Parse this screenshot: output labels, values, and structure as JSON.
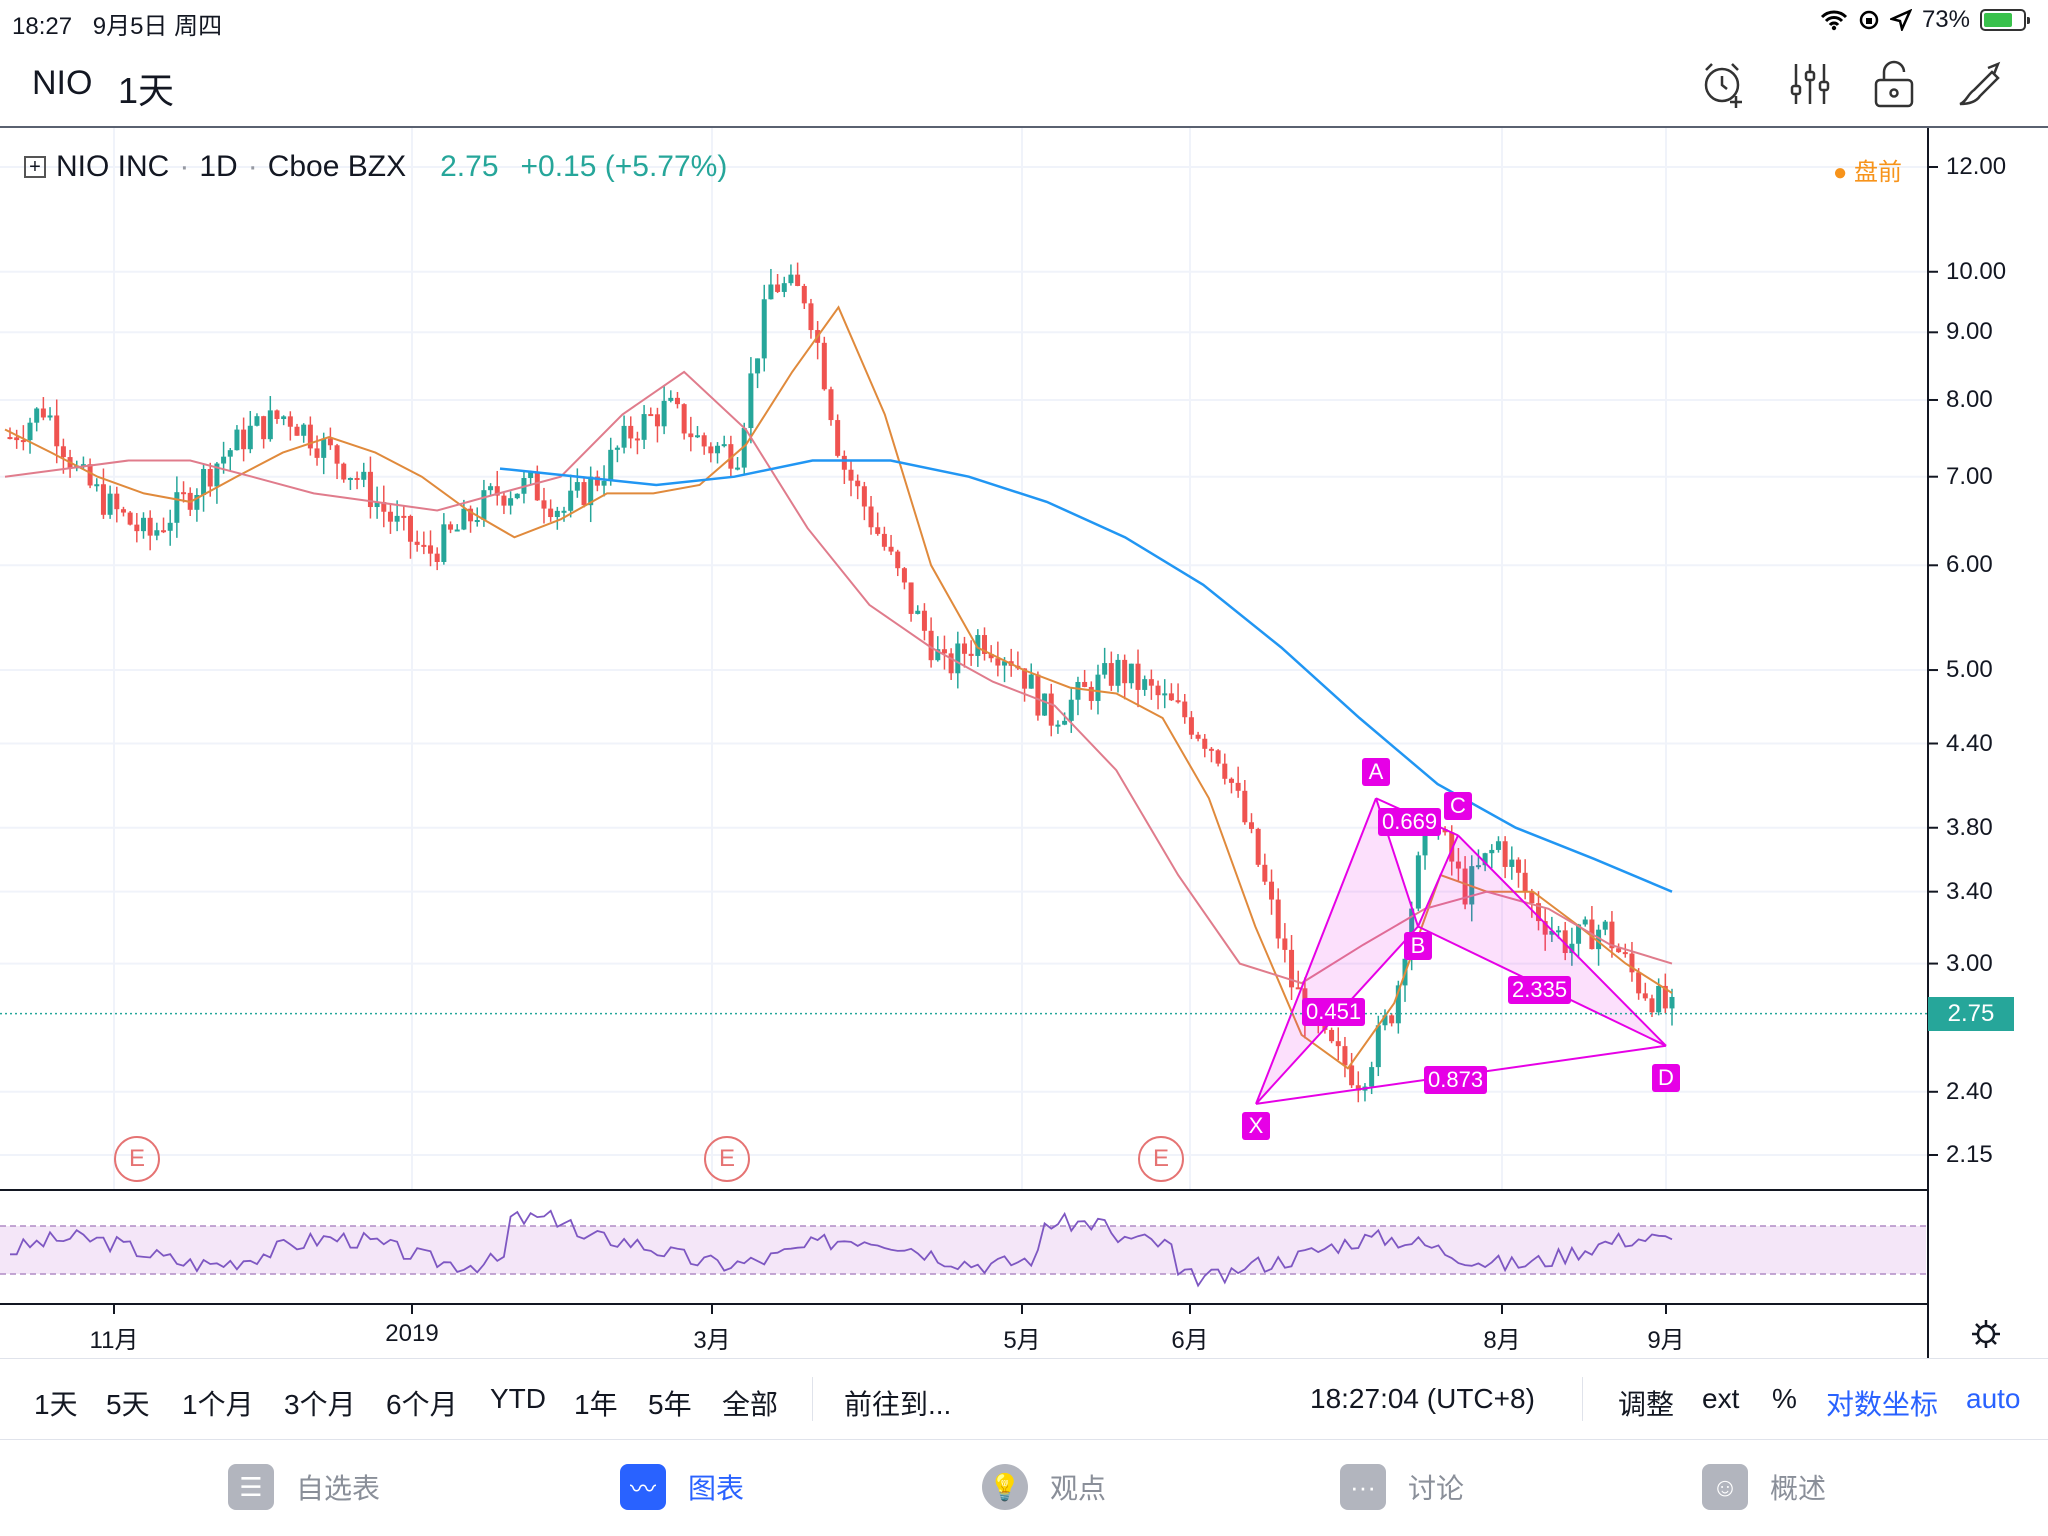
{
  "status": {
    "time": "18:27",
    "date": "9月5日 周四",
    "battery": "73%",
    "battery_level": 0.73
  },
  "header": {
    "symbol": "NIO",
    "interval": "1天"
  },
  "toolbar_icons": [
    "alarm-add-icon",
    "indicators-icon",
    "unlock-icon",
    "drawing-pen-icon"
  ],
  "legend": {
    "name": "NIO INC",
    "interval": "1D",
    "exchange": "Cboe BZX",
    "price": "2.75",
    "change": "+0.15 (+5.77%)",
    "sep": "·"
  },
  "premarket": "盘前",
  "price_tag": "2.75",
  "earnings_marker": "E",
  "pattern": {
    "points": [
      "X",
      "A",
      "B",
      "C",
      "D"
    ],
    "ratios": [
      "0.451",
      "0.669",
      "2.335",
      "0.873"
    ],
    "color": "#e600e6"
  },
  "range_buttons": [
    "1天",
    "5天",
    "1个月",
    "3个月",
    "6个月",
    "YTD",
    "1年",
    "5年",
    "全部"
  ],
  "goto_label": "前往到...",
  "clock": "18:27:04 (UTC+8)",
  "right_controls": {
    "adjust": "调整",
    "ext": "ext",
    "percent": "%",
    "log": "对数坐标",
    "auto": "auto"
  },
  "tabs": [
    {
      "label": "自选表",
      "icon": "watchlist-icon",
      "active": false
    },
    {
      "label": "图表",
      "icon": "chart-icon",
      "active": true
    },
    {
      "label": "观点",
      "icon": "ideas-icon",
      "active": false
    },
    {
      "label": "讨论",
      "icon": "chat-icon",
      "active": false
    },
    {
      "label": "概述",
      "icon": "overview-icon",
      "active": false
    }
  ],
  "chart_data": {
    "type": "candlestick",
    "title": "NIO INC · 1D · Cboe BZX",
    "y_scale": "log",
    "y_ticks": [
      12.0,
      10.0,
      9.0,
      8.0,
      7.0,
      6.0,
      5.0,
      4.4,
      3.8,
      3.4,
      3.0,
      2.75,
      2.4,
      2.15
    ],
    "y_tick_labels": [
      "12.00",
      "10.00",
      "9.00",
      "8.00",
      "7.00",
      "6.00",
      "5.00",
      "4.40",
      "3.80",
      "3.40",
      "3.00",
      "2.75",
      "2.40",
      "2.15"
    ],
    "ylim": [
      2.0,
      12.5
    ],
    "x_labels": [
      "11月",
      "2019",
      "3月",
      "5月",
      "6月",
      "8月",
      "9月"
    ],
    "close_approx": [
      7.5,
      7.9,
      7.0,
      6.6,
      6.3,
      6.7,
      7.2,
      7.6,
      7.8,
      7.4,
      7.0,
      6.5,
      6.1,
      6.4,
      6.8,
      6.9,
      6.6,
      7.0,
      7.6,
      7.9,
      7.4,
      7.3,
      9.8,
      9.6,
      7.2,
      6.4,
      5.6,
      5.0,
      5.3,
      5.1,
      4.6,
      4.8,
      5.0,
      4.8,
      4.6,
      4.3,
      3.6,
      2.9,
      2.6,
      2.45,
      2.8,
      3.9,
      3.4,
      3.7,
      3.3,
      3.1,
      3.2,
      2.9,
      2.75
    ],
    "moving_averages": [
      {
        "color": "#e08a3c",
        "values": [
          7.6,
          7.3,
          7.0,
          6.8,
          6.7,
          7.0,
          7.3,
          7.5,
          7.3,
          7.0,
          6.6,
          6.3,
          6.5,
          6.8,
          6.8,
          6.9,
          7.4,
          8.4,
          9.4,
          7.8,
          6.0,
          5.2,
          5.0,
          4.85,
          4.8,
          4.6,
          4.0,
          3.2,
          2.65,
          2.5,
          2.8,
          3.5,
          3.4,
          3.4,
          3.2,
          3.0,
          2.85
        ]
      },
      {
        "color": "#e07c8c",
        "values": [
          7.0,
          7.1,
          7.2,
          7.2,
          7.0,
          6.8,
          6.7,
          6.6,
          6.8,
          7.0,
          7.8,
          8.4,
          7.6,
          6.4,
          5.6,
          5.2,
          4.9,
          4.7,
          4.2,
          3.5,
          3.0,
          2.9,
          3.1,
          3.3,
          3.4,
          3.3,
          3.1,
          3.0
        ]
      },
      {
        "color": "#2196f3",
        "values": [
          7.1,
          7.0,
          6.9,
          7.0,
          7.2,
          7.2,
          7.0,
          6.7,
          6.3,
          5.8,
          5.2,
          4.6,
          4.1,
          3.8,
          3.6,
          3.4
        ]
      }
    ],
    "xabcd": {
      "X": 2.35,
      "A": 4.0,
      "B": 3.2,
      "C": 3.75,
      "D": 2.6
    },
    "rsi_band": [
      30,
      70
    ]
  }
}
